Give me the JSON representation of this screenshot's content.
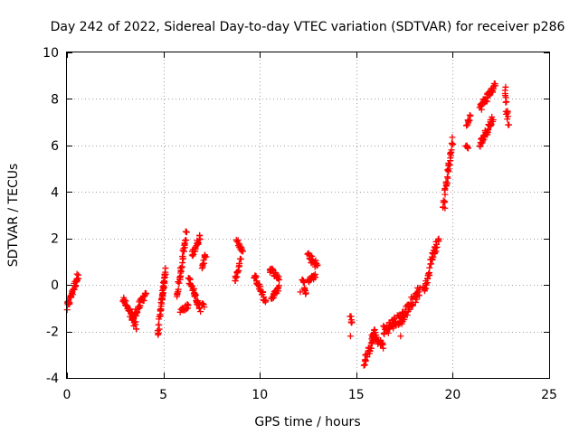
{
  "chart_data": {
    "type": "scatter",
    "title": "Day 242 of 2022, Sidereal Day-to-day VTEC variation (SDTVAR) for receiver p286",
    "xlabel": "GPS time / hours",
    "ylabel": "SDTVAR / TECUs",
    "xlim": [
      0,
      25
    ],
    "ylim": [
      -4,
      10
    ],
    "xticks": [
      0,
      5,
      10,
      15,
      20,
      25
    ],
    "yticks": [
      -4,
      -2,
      0,
      2,
      4,
      6,
      8,
      10
    ],
    "xtick_labels": [
      "0",
      "5",
      "10",
      "15",
      "20",
      "25"
    ],
    "ytick_labels": [
      "-4",
      "-2",
      "0",
      "2",
      "4",
      "6",
      "8",
      "10"
    ],
    "grid": true,
    "marker": "plus",
    "color": "#ff0000",
    "series": [
      {
        "segments": [
          {
            "x0": 0.0,
            "x1": 0.6,
            "y0": -1.0,
            "y1": 0.5,
            "spread": 0.35
          },
          {
            "x0": 2.9,
            "x1": 3.6,
            "y0": -0.6,
            "y1": -1.8,
            "spread": 0.35
          },
          {
            "x0": 3.4,
            "x1": 4.1,
            "y0": -1.5,
            "y1": -0.3,
            "spread": 0.35
          },
          {
            "x0": 4.7,
            "x1": 5.1,
            "y0": -2.2,
            "y1": 0.6,
            "spread": 0.3
          },
          {
            "x0": 4.9,
            "x1": 5.1,
            "y0": -0.8,
            "y1": 0.5,
            "spread": 0.25
          },
          {
            "x0": 5.7,
            "x1": 6.2,
            "y0": -0.5,
            "y1": 2.3,
            "spread": 0.35
          },
          {
            "x0": 5.9,
            "x1": 6.3,
            "y0": -1.1,
            "y1": -0.9,
            "spread": 0.2
          },
          {
            "x0": 6.3,
            "x1": 6.6,
            "y0": 0.3,
            "y1": -0.4,
            "spread": 0.3
          },
          {
            "x0": 6.5,
            "x1": 6.9,
            "y0": 1.3,
            "y1": 2.1,
            "spread": 0.3
          },
          {
            "x0": 6.6,
            "x1": 6.9,
            "y0": -0.3,
            "y1": -1.1,
            "spread": 0.25
          },
          {
            "x0": 7.0,
            "x1": 7.2,
            "y0": 0.8,
            "y1": 1.3,
            "spread": 0.25
          },
          {
            "x0": 7.0,
            "x1": 7.1,
            "y0": -0.8,
            "y1": -0.9,
            "spread": 0.1
          },
          {
            "x0": 8.7,
            "x1": 9.0,
            "y0": 0.2,
            "y1": 1.0,
            "spread": 0.35
          },
          {
            "x0": 8.8,
            "x1": 9.1,
            "y0": 1.9,
            "y1": 1.4,
            "spread": 0.2
          },
          {
            "x0": 9.7,
            "x1": 10.3,
            "y0": 0.4,
            "y1": -0.7,
            "spread": 0.3
          },
          {
            "x0": 10.5,
            "x1": 11.0,
            "y0": 0.7,
            "y1": 0.3,
            "spread": 0.25
          },
          {
            "x0": 10.6,
            "x1": 11.0,
            "y0": -0.6,
            "y1": -0.1,
            "spread": 0.2
          },
          {
            "x0": 12.2,
            "x1": 12.4,
            "y0": 0.3,
            "y1": -0.3,
            "spread": 0.2
          },
          {
            "x0": 12.5,
            "x1": 13.0,
            "y0": 1.3,
            "y1": 0.8,
            "spread": 0.35
          },
          {
            "x0": 12.5,
            "x1": 12.9,
            "y0": 0.2,
            "y1": 0.4,
            "spread": 0.2
          },
          {
            "x0": 14.7,
            "x1": 14.8,
            "y0": -1.4,
            "y1": -1.6,
            "spread": 0.2
          },
          {
            "x0": 15.4,
            "x1": 16.0,
            "y0": -3.4,
            "y1": -2.0,
            "spread": 0.4
          },
          {
            "x0": 15.8,
            "x1": 16.4,
            "y0": -2.2,
            "y1": -2.6,
            "spread": 0.3
          },
          {
            "x0": 16.4,
            "x1": 17.5,
            "y0": -2.0,
            "y1": -1.3,
            "spread": 0.5
          },
          {
            "x0": 17.3,
            "x1": 18.3,
            "y0": -1.5,
            "y1": -0.2,
            "spread": 0.5
          },
          {
            "x0": 18.5,
            "x1": 18.8,
            "y0": -0.2,
            "y1": 0.5,
            "spread": 0.3
          },
          {
            "x0": 18.8,
            "x1": 19.3,
            "y0": 0.9,
            "y1": 2.0,
            "spread": 0.35
          },
          {
            "x0": 19.5,
            "x1": 20.0,
            "y0": 3.4,
            "y1": 6.2,
            "spread": 0.45
          },
          {
            "x0": 20.7,
            "x1": 20.8,
            "y0": 6.0,
            "y1": 5.9,
            "spread": 0.1
          },
          {
            "x0": 20.7,
            "x1": 20.9,
            "y0": 6.9,
            "y1": 7.3,
            "spread": 0.3
          },
          {
            "x0": 21.4,
            "x1": 22.2,
            "y0": 7.6,
            "y1": 8.6,
            "spread": 0.35
          },
          {
            "x0": 21.4,
            "x1": 22.1,
            "y0": 6.0,
            "y1": 7.2,
            "spread": 0.35
          },
          {
            "x0": 22.7,
            "x1": 22.9,
            "y0": 8.3,
            "y1": 7.0,
            "spread": 0.8
          }
        ],
        "isolated_points": [
          {
            "x": 14.7,
            "y": -2.2
          },
          {
            "x": 17.3,
            "y": -2.2
          },
          {
            "x": 19.6,
            "y": 3.3
          },
          {
            "x": 12.1,
            "y": -0.3
          }
        ]
      }
    ]
  }
}
